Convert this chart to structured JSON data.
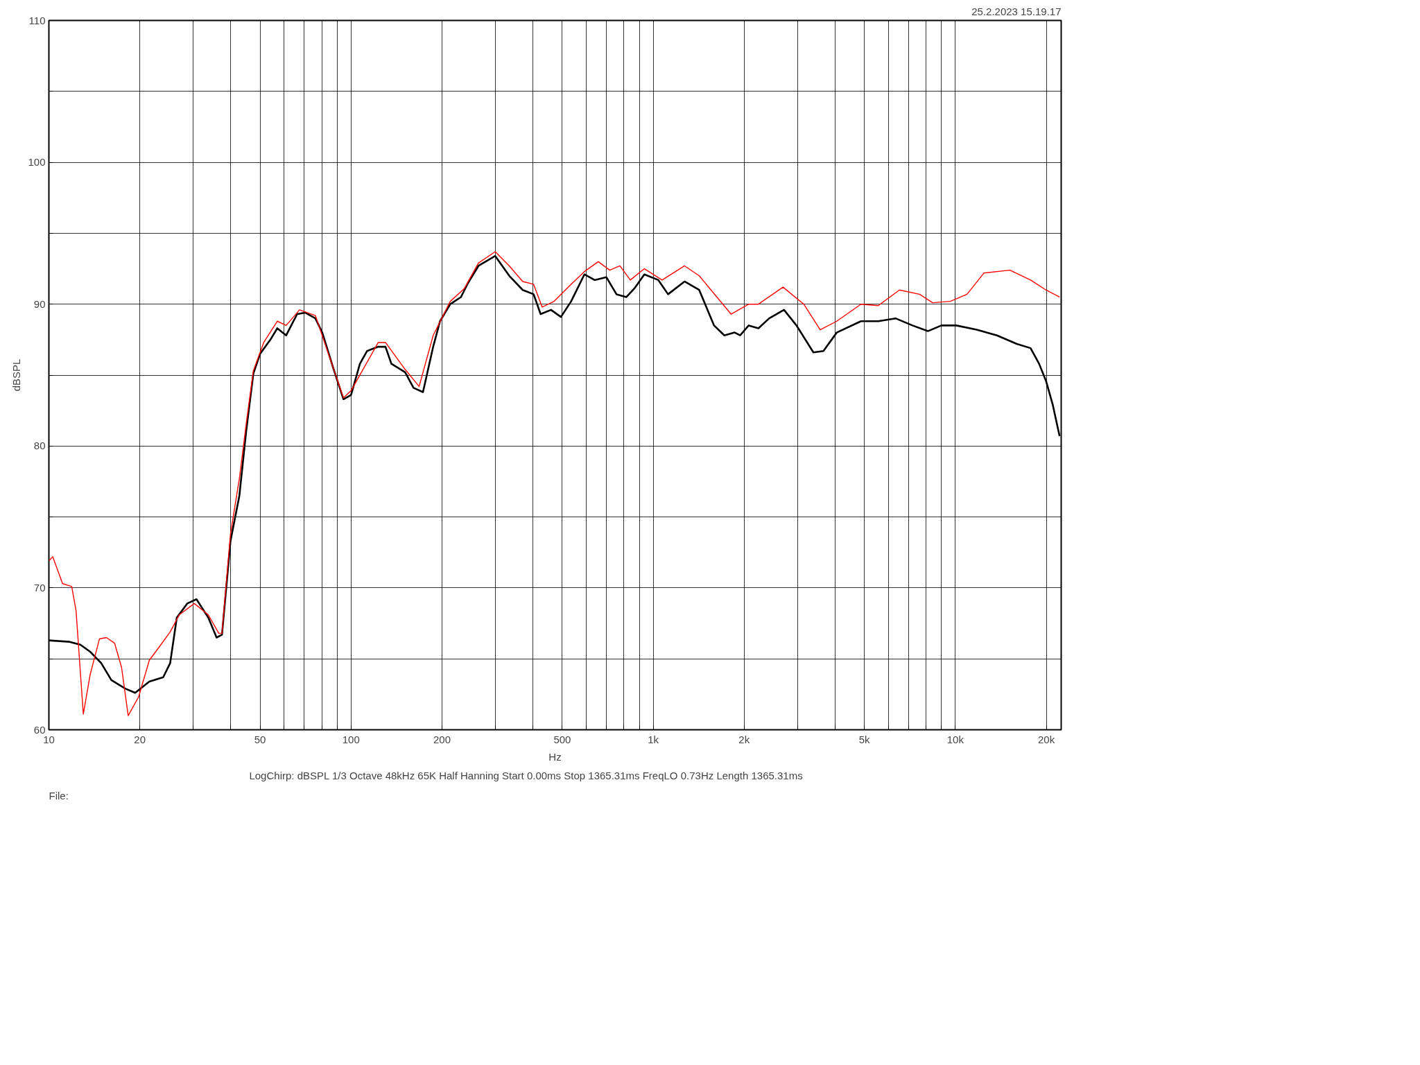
{
  "chart_data": {
    "type": "line",
    "xlabel": "Hz",
    "ylabel": "dBSPL",
    "log": "x",
    "grid": true,
    "annotations": [
      "25.2.2023 15.19.17",
      "LogChirp:  dBSPL   1/3 Octave   48kHz   65K   Half Hanning   Start 0.00ms    Stop 1365.31ms    FreqLO 0.73Hz    Length 1365.31ms",
      "File:"
    ],
    "xlim": [
      10,
      22400
    ],
    "ylim": [
      60,
      110
    ],
    "xticks": [
      10,
      20,
      {
        "value": 30,
        "label": null
      },
      {
        "value": 40,
        "label": null
      },
      50,
      {
        "value": 60,
        "label": null
      },
      {
        "value": 70,
        "label": null
      },
      {
        "value": 80,
        "label": null
      },
      {
        "value": 90,
        "label": null
      },
      100,
      200,
      {
        "value": 300,
        "label": null
      },
      {
        "value": 400,
        "label": null
      },
      500,
      {
        "value": 600,
        "label": null
      },
      {
        "value": 700,
        "label": null
      },
      {
        "value": 800,
        "label": null
      },
      {
        "value": 900,
        "label": null
      },
      {
        "value": 1000,
        "label": "1k"
      },
      {
        "value": 2000,
        "label": "2k"
      },
      {
        "value": 3000,
        "label": null
      },
      {
        "value": 4000,
        "label": null
      },
      {
        "value": 5000,
        "label": "5k"
      },
      {
        "value": 6000,
        "label": null
      },
      {
        "value": 7000,
        "label": null
      },
      {
        "value": 8000,
        "label": null
      },
      {
        "value": 9000,
        "label": null
      },
      {
        "value": 10000,
        "label": "10k"
      },
      {
        "value": 20000,
        "label": "20k"
      }
    ],
    "yticks": [
      60,
      {
        "value": 65,
        "label": null
      },
      70,
      {
        "value": 75,
        "label": null
      },
      80,
      {
        "value": 85,
        "label": null
      },
      90,
      {
        "value": 95,
        "label": null
      },
      100,
      {
        "value": 105,
        "label": null
      },
      110
    ],
    "series": [
      {
        "color": "#000000",
        "x": [
          10,
          11.7,
          12.7,
          13.7,
          14.9,
          16.1,
          17.9,
          19.3,
          21.5,
          23.9,
          25.2,
          26.5,
          28.7,
          30.8,
          33.7,
          35.9,
          37.4,
          39.9,
          42.7,
          45,
          47.5,
          50,
          54.1,
          57,
          61,
          66.3,
          70.5,
          76.2,
          80.3,
          87,
          94.4,
          100,
          107,
          113,
          123,
          130,
          136,
          151,
          161,
          173,
          187,
          197,
          213,
          231,
          244,
          264,
          300,
          334,
          370,
          402,
          424,
          459,
          495,
          535,
          592,
          640,
          700,
          756,
          815,
          866,
          935,
          1040,
          1120,
          1270,
          1420,
          1590,
          1720,
          1860,
          1940,
          2070,
          2230,
          2420,
          2710,
          2980,
          3390,
          3660,
          4050,
          4870,
          5560,
          6340,
          7210,
          8110,
          8990,
          10070,
          11770,
          13730,
          15970,
          17740,
          18930,
          19950,
          21010,
          22130
        ],
        "values": [
          66.3,
          66.2,
          66.0,
          65.5,
          64.7,
          63.5,
          62.9,
          62.6,
          63.4,
          63.7,
          64.7,
          67.9,
          68.9,
          69.2,
          67.9,
          66.5,
          66.7,
          73.3,
          76.5,
          81.1,
          85.1,
          86.5,
          87.5,
          88.3,
          87.8,
          89.3,
          89.4,
          89.0,
          88.0,
          85.6,
          83.3,
          83.6,
          85.8,
          86.7,
          87.0,
          87.0,
          85.8,
          85.2,
          84.1,
          83.8,
          87.0,
          88.8,
          90.0,
          90.5,
          91.5,
          92.7,
          93.4,
          92.0,
          91.0,
          90.7,
          89.3,
          89.6,
          89.1,
          90.2,
          92.1,
          91.7,
          91.9,
          90.7,
          90.5,
          91.1,
          92.1,
          91.7,
          90.7,
          91.6,
          91.0,
          88.5,
          87.8,
          88.0,
          87.8,
          88.5,
          88.3,
          89.0,
          89.6,
          88.5,
          86.6,
          86.7,
          88.0,
          88.8,
          88.8,
          89.0,
          88.5,
          88.1,
          88.5,
          88.5,
          88.2,
          87.8,
          87.2,
          86.9,
          85.8,
          84.6,
          82.9,
          80.7
        ]
      },
      {
        "color": "#ff0000",
        "x": [
          10,
          10.3,
          11.1,
          11.9,
          12.3,
          13.0,
          13.7,
          14.7,
          15.5,
          16.5,
          17.4,
          18.3,
          19.8,
          21.5,
          23.3,
          25.2,
          27.0,
          30.3,
          33.7,
          36.5,
          37.4,
          39.9,
          42.7,
          45,
          47.5,
          51.4,
          57,
          61,
          67.5,
          76.2,
          94.4,
          100,
          123,
          130,
          151,
          168,
          187,
          213,
          237,
          264,
          300,
          334,
          370,
          402,
          429,
          470,
          535,
          592,
          658,
          718,
          776,
          840,
          935,
          1070,
          1270,
          1420,
          1810,
          2070,
          2230,
          2690,
          3150,
          3570,
          4050,
          4870,
          5560,
          6530,
          7610,
          8410,
          9620,
          10930,
          12440,
          15150,
          17740,
          19950,
          22130
        ],
        "values": [
          71.9,
          72.2,
          70.3,
          70.1,
          68.4,
          61.1,
          63.9,
          66.4,
          66.5,
          66.1,
          64.4,
          61.0,
          62.3,
          64.9,
          65.9,
          66.9,
          68.1,
          68.9,
          68.1,
          66.8,
          66.8,
          73.8,
          77.7,
          81.6,
          85.3,
          87.3,
          88.8,
          88.5,
          89.6,
          89.2,
          83.4,
          83.9,
          87.3,
          87.3,
          85.4,
          84.2,
          87.8,
          90.2,
          91.1,
          92.9,
          93.7,
          92.7,
          91.6,
          91.4,
          89.8,
          90.2,
          91.4,
          92.3,
          93.0,
          92.4,
          92.7,
          91.7,
          92.5,
          91.7,
          92.7,
          92.0,
          89.3,
          90.0,
          90.0,
          91.2,
          90.0,
          88.2,
          88.8,
          90.0,
          89.9,
          91.0,
          90.7,
          90.1,
          90.2,
          90.7,
          92.2,
          92.4,
          91.7,
          91.0,
          90.5
        ]
      }
    ]
  }
}
